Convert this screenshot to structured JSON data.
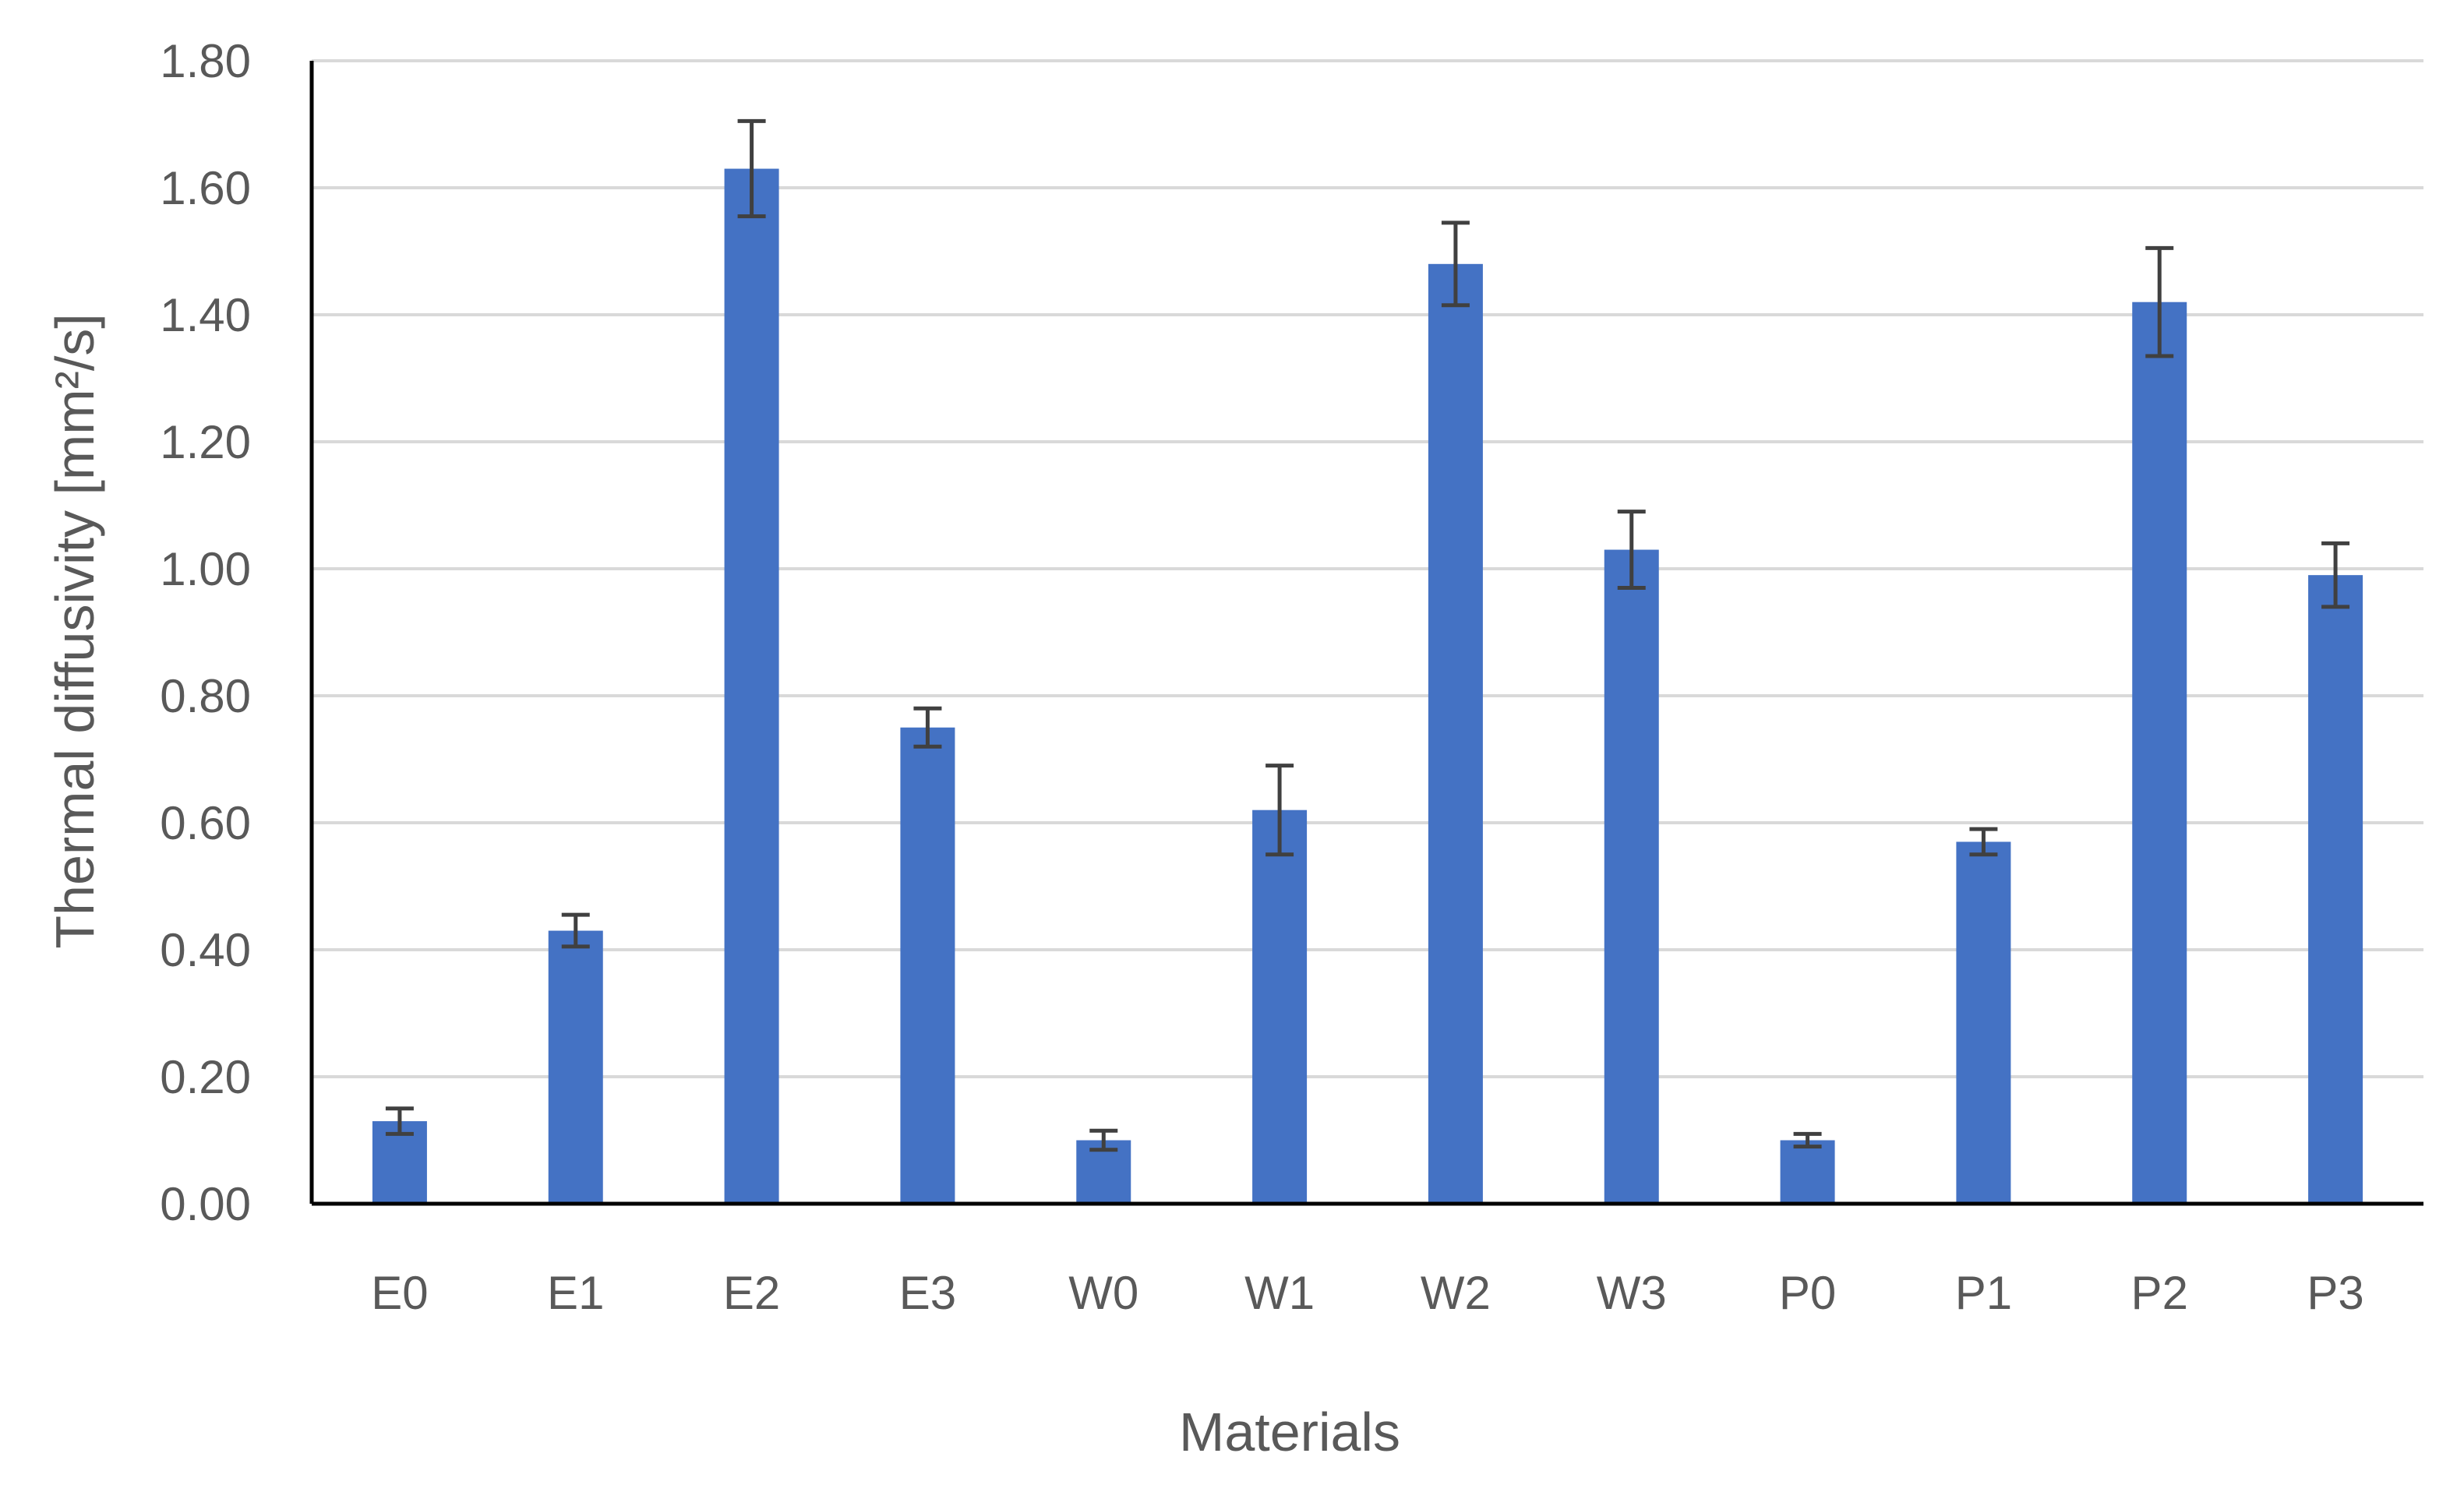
{
  "chart_data": {
    "type": "bar",
    "title": "",
    "xlabel": "Materials",
    "ylabel": "Thermal diffusivity [mm²/s]",
    "ylim": [
      0,
      1.8
    ],
    "ytick_step": 0.2,
    "ytick_labels": [
      "0.00",
      "0.20",
      "0.40",
      "0.60",
      "0.80",
      "1.00",
      "1.20",
      "1.40",
      "1.60",
      "1.80"
    ],
    "grid": true,
    "legend": "none",
    "color": "#4472c4",
    "categories": [
      "E0",
      "E1",
      "E2",
      "E3",
      "W0",
      "W1",
      "W2",
      "W3",
      "P0",
      "P1",
      "P2",
      "P3"
    ],
    "values": [
      0.13,
      0.43,
      1.63,
      0.75,
      0.1,
      0.62,
      1.48,
      1.03,
      0.1,
      0.57,
      1.42,
      0.99
    ],
    "errors": [
      0.02,
      0.025,
      0.075,
      0.03,
      0.015,
      0.07,
      0.065,
      0.06,
      0.01,
      0.02,
      0.085,
      0.05
    ]
  }
}
